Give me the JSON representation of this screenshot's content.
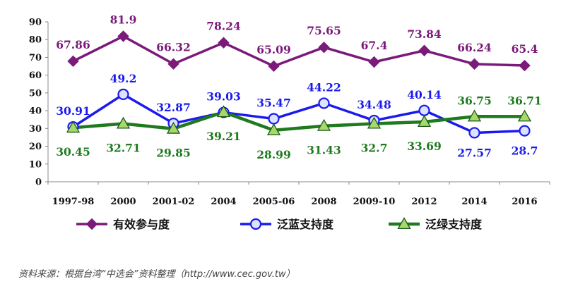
{
  "chart_data": {
    "type": "line",
    "categories": [
      "1997-98",
      "2000",
      "2001-02",
      "2004",
      "2005-06",
      "2008",
      "2009-10",
      "2012",
      "2014",
      "2016"
    ],
    "ylim": [
      0,
      90
    ],
    "yticks": [
      "0",
      "10",
      "20",
      "30",
      "40",
      "50",
      "60",
      "70",
      "80",
      "90"
    ],
    "grid": false,
    "legend_position": "bottom",
    "series": [
      {
        "name": "有效参与度",
        "color": "#7a1a7a",
        "marker": "diamond",
        "values": [
          67.86,
          81.9,
          66.32,
          78.24,
          65.09,
          75.65,
          67.4,
          73.84,
          66.24,
          65.4
        ],
        "labels": [
          "67.86",
          "81.9",
          "66.32",
          "78.24",
          "65.09",
          "75.65",
          "67.4",
          "73.84",
          "66.24",
          "65.4"
        ]
      },
      {
        "name": "泛蓝支持度",
        "color": "#1a1aee",
        "marker": "circle",
        "values": [
          30.91,
          49.2,
          32.87,
          39.03,
          35.47,
          44.22,
          34.48,
          40.14,
          27.57,
          28.7
        ],
        "labels": [
          "30.91",
          "49.2",
          "32.87",
          "39.03",
          "35.47",
          "44.22",
          "34.48",
          "40.14",
          "27.57",
          "28.7"
        ]
      },
      {
        "name": "泛绿支持度",
        "color": "#1f7a1f",
        "marker": "triangle",
        "values": [
          30.45,
          32.71,
          29.85,
          39.21,
          28.99,
          31.43,
          32.7,
          33.69,
          36.75,
          36.71
        ],
        "labels": [
          "30.45",
          "32.71",
          "29.85",
          "39.21",
          "28.99",
          "31.43",
          "32.7",
          "33.69",
          "36.75",
          "36.71"
        ]
      }
    ]
  },
  "source_note": "资料来源：根据台湾“中选会”资料整理（http://www.cec.gov.tw）"
}
